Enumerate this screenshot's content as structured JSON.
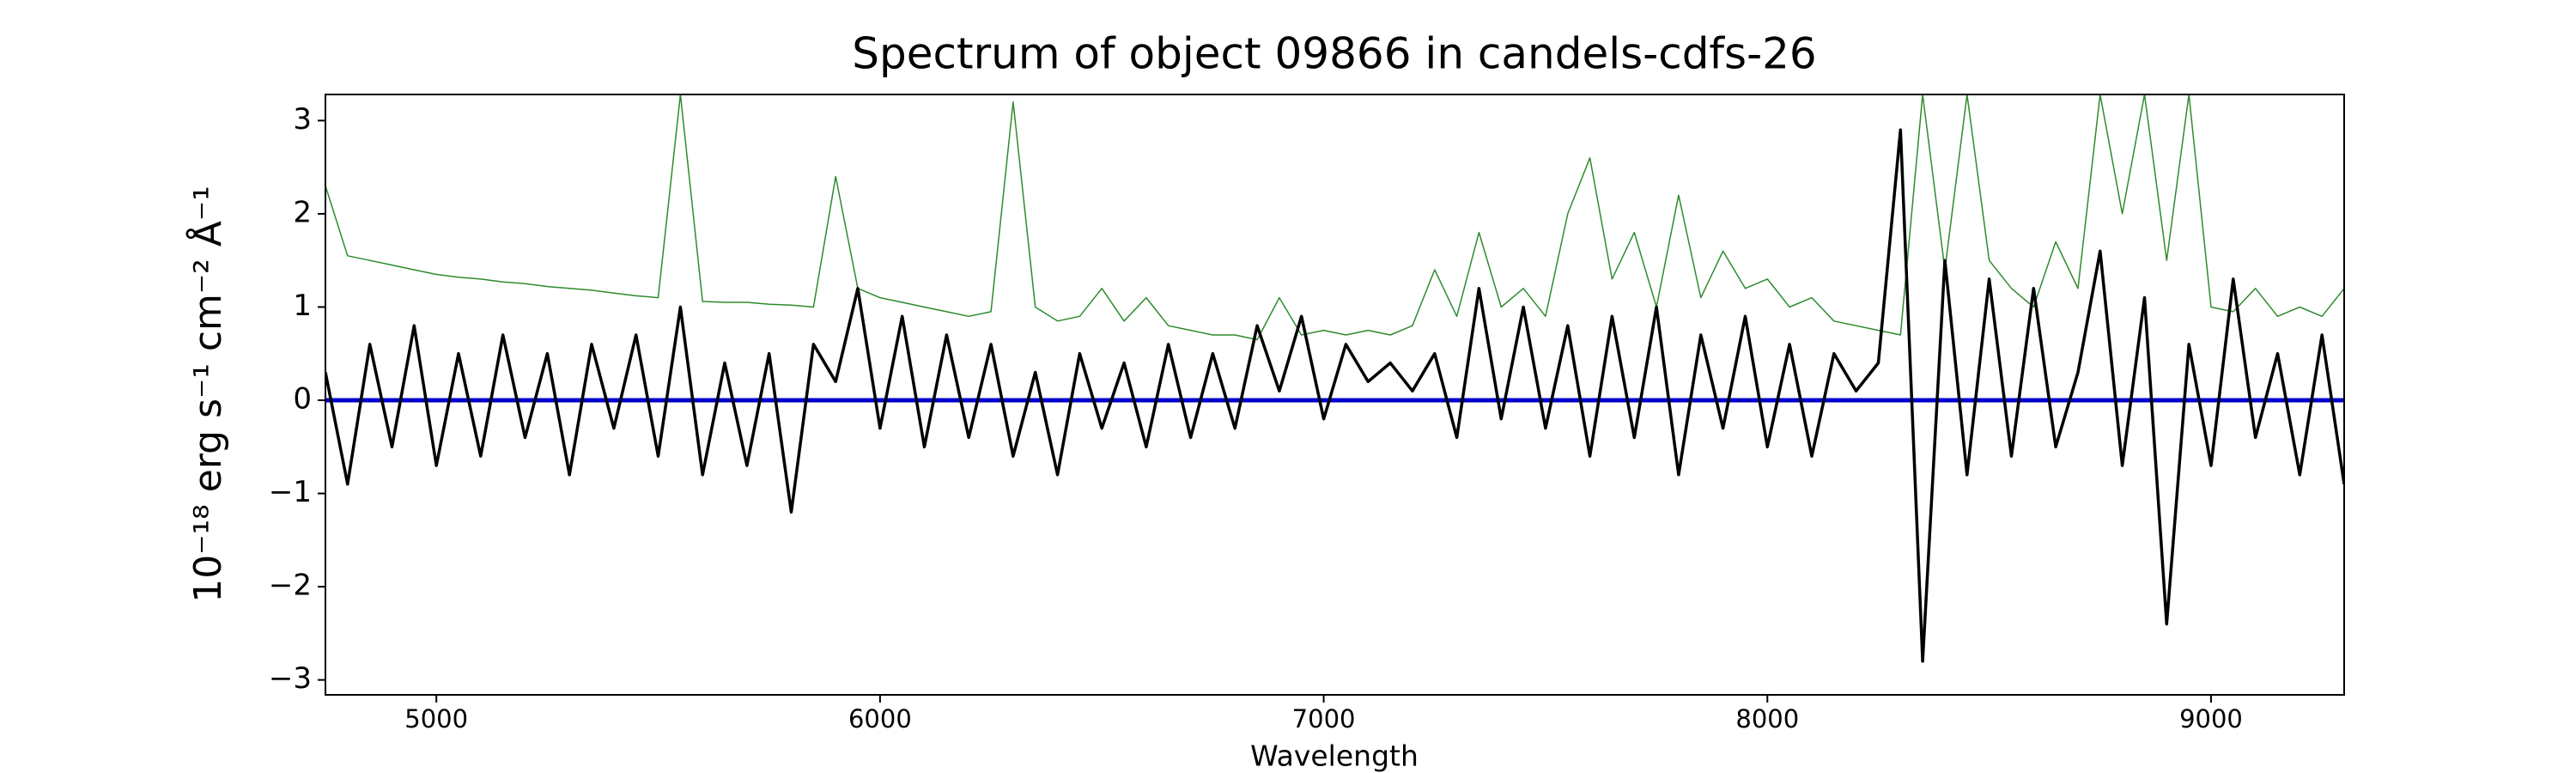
{
  "chart_data": {
    "type": "line",
    "title": "Spectrum of object 09866 in candels-cdfs-26",
    "x_label": "Wavelength",
    "y_label": "10⁻¹⁸ erg s⁻¹ cm⁻² Å⁻¹",
    "x": [
      4750,
      4800,
      4850,
      4900,
      4950,
      5000,
      5050,
      5100,
      5150,
      5200,
      5250,
      5300,
      5350,
      5400,
      5450,
      5500,
      5550,
      5600,
      5650,
      5700,
      5750,
      5800,
      5850,
      5900,
      5950,
      6000,
      6050,
      6100,
      6150,
      6200,
      6250,
      6300,
      6350,
      6400,
      6450,
      6500,
      6550,
      6600,
      6650,
      6700,
      6750,
      6800,
      6850,
      6900,
      6950,
      7000,
      7050,
      7100,
      7150,
      7200,
      7250,
      7300,
      7350,
      7400,
      7450,
      7500,
      7550,
      7600,
      7650,
      7700,
      7750,
      7800,
      7850,
      7900,
      7950,
      8000,
      8050,
      8100,
      8150,
      8200,
      8250,
      8300,
      8350,
      8400,
      8450,
      8500,
      8550,
      8600,
      8650,
      8700,
      8750,
      8800,
      8850,
      8900,
      8950,
      9000,
      9050,
      9100,
      9150,
      9200,
      9250,
      9300
    ],
    "series": [
      {
        "color": "#2e8b2e",
        "width": 1.5,
        "values": [
          2.3,
          1.55,
          1.5,
          1.45,
          1.4,
          1.35,
          1.32,
          1.3,
          1.27,
          1.25,
          1.22,
          1.2,
          1.18,
          1.15,
          1.12,
          1.1,
          3.28,
          1.06,
          1.05,
          1.05,
          1.03,
          1.02,
          1.0,
          2.4,
          1.2,
          1.1,
          1.05,
          1.0,
          0.95,
          0.9,
          0.95,
          3.2,
          1.0,
          0.85,
          0.9,
          1.2,
          0.85,
          1.1,
          0.8,
          0.75,
          0.7,
          0.7,
          0.65,
          1.1,
          0.7,
          0.75,
          0.7,
          0.75,
          0.7,
          0.8,
          1.4,
          0.9,
          1.8,
          1.0,
          1.2,
          0.9,
          2.0,
          2.6,
          1.3,
          1.8,
          1.0,
          2.2,
          1.1,
          1.6,
          1.2,
          1.3,
          1.0,
          1.1,
          0.85,
          0.8,
          0.75,
          0.7,
          3.28,
          1.4,
          3.28,
          1.5,
          1.2,
          1.0,
          1.7,
          1.2,
          3.28,
          2.0,
          3.28,
          1.5,
          3.28,
          1.0,
          0.95,
          1.2,
          0.9,
          1.0,
          0.9,
          1.2
        ]
      },
      {
        "color": "#0000cc",
        "width": 5,
        "values": [
          0,
          0,
          0,
          0,
          0,
          0,
          0,
          0,
          0,
          0,
          0,
          0,
          0,
          0,
          0,
          0,
          0,
          0,
          0,
          0,
          0,
          0,
          0,
          0,
          0,
          0,
          0,
          0,
          0,
          0,
          0,
          0,
          0,
          0,
          0,
          0,
          0,
          0,
          0,
          0,
          0,
          0,
          0,
          0,
          0,
          0,
          0,
          0,
          0,
          0,
          0,
          0,
          0,
          0,
          0,
          0,
          0,
          0,
          0,
          0,
          0,
          0,
          0,
          0,
          0,
          0,
          0,
          0,
          0,
          0,
          0,
          0,
          0,
          0,
          0,
          0,
          0,
          0,
          0,
          0,
          0,
          0,
          0,
          0,
          0,
          0,
          0,
          0,
          0,
          0,
          0,
          0
        ]
      },
      {
        "color": "#000000",
        "width": 3.5,
        "values": [
          0.3,
          -0.9,
          0.6,
          -0.5,
          0.8,
          -0.7,
          0.5,
          -0.6,
          0.7,
          -0.4,
          0.5,
          -0.8,
          0.6,
          -0.3,
          0.7,
          -0.6,
          1.0,
          -0.8,
          0.4,
          -0.7,
          0.5,
          -1.2,
          0.6,
          0.2,
          1.2,
          -0.3,
          0.9,
          -0.5,
          0.7,
          -0.4,
          0.6,
          -0.6,
          0.3,
          -0.8,
          0.5,
          -0.3,
          0.4,
          -0.5,
          0.6,
          -0.4,
          0.5,
          -0.3,
          0.8,
          0.1,
          0.9,
          -0.2,
          0.6,
          0.2,
          0.4,
          0.1,
          0.5,
          -0.4,
          1.2,
          -0.2,
          1.0,
          -0.3,
          0.8,
          -0.6,
          0.9,
          -0.4,
          1.0,
          -0.8,
          0.7,
          -0.3,
          0.9,
          -0.5,
          0.6,
          -0.6,
          0.5,
          0.1,
          0.4,
          2.9,
          -2.8,
          1.5,
          -0.8,
          1.3,
          -0.6,
          1.2,
          -0.5,
          0.3,
          1.6,
          -0.7,
          1.1,
          -2.4,
          0.6,
          -0.7,
          1.3,
          -0.4,
          0.5,
          -0.8,
          0.7,
          -0.9
        ]
      }
    ],
    "xlim": [
      4750,
      9300
    ],
    "ylim": [
      -3.16,
      3.28
    ],
    "xticks": [
      5000,
      6000,
      7000,
      8000,
      9000
    ],
    "yticks": [
      {
        "value": -3,
        "label": "−3"
      },
      {
        "value": -2,
        "label": "−2"
      },
      {
        "value": -1,
        "label": "−1"
      },
      0,
      1,
      2,
      3
    ]
  }
}
